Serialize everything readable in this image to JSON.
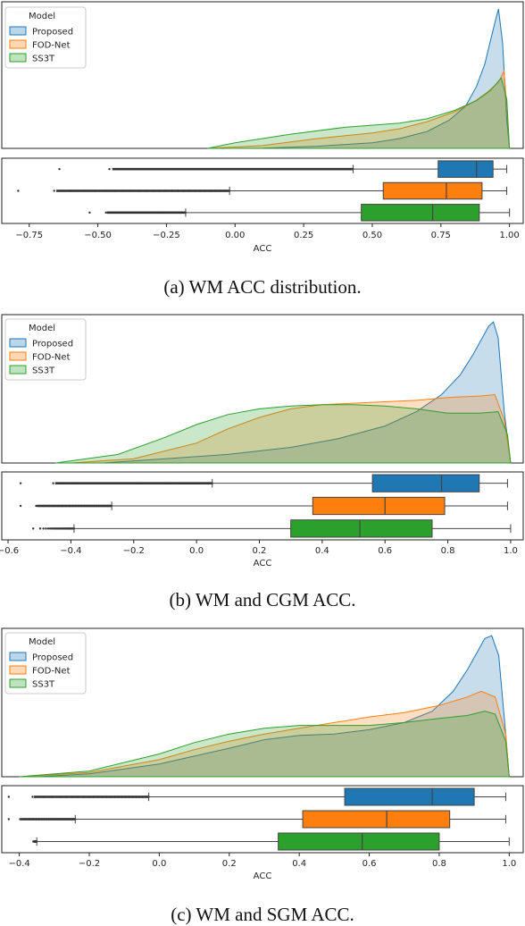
{
  "legend_title": "Model",
  "colors": {
    "Proposed": "#1f77b4",
    "FOD-Net": "#ff7f0e",
    "SS3T": "#2ca02c"
  },
  "chart_data": [
    {
      "type": "area",
      "panel": "a",
      "caption": "(a) WM ACC distribution.",
      "xlabel": "ACC",
      "xlim": [
        -0.85,
        1.05
      ],
      "xticks": [
        -0.75,
        -0.5,
        -0.25,
        0.0,
        0.25,
        0.5,
        0.75,
        1.0
      ],
      "xtick_labels": [
        "−0.75",
        "−0.50",
        "−0.25",
        "0.00",
        "0.25",
        "0.50",
        "0.75",
        "1.00"
      ],
      "legend": [
        "Proposed",
        "FOD-Net",
        "SS3T"
      ],
      "legend_position": "upper left",
      "density_series": [
        {
          "name": "Proposed",
          "x": [
            -0.05,
            0.1,
            0.3,
            0.5,
            0.6,
            0.7,
            0.78,
            0.84,
            0.88,
            0.91,
            0.93,
            0.95,
            0.96,
            0.975,
            0.99,
            1.0
          ],
          "y": [
            0.0,
            0.002,
            0.015,
            0.04,
            0.07,
            0.12,
            0.2,
            0.3,
            0.44,
            0.6,
            0.76,
            0.92,
            0.99,
            0.75,
            0.2,
            0.0
          ]
        },
        {
          "name": "FOD-Net",
          "x": [
            -0.1,
            0.1,
            0.3,
            0.5,
            0.6,
            0.7,
            0.8,
            0.87,
            0.92,
            0.96,
            0.98,
            0.99,
            1.0
          ],
          "y": [
            0.0,
            0.02,
            0.07,
            0.11,
            0.14,
            0.19,
            0.26,
            0.33,
            0.4,
            0.47,
            0.55,
            0.3,
            0.0
          ]
        },
        {
          "name": "SS3T",
          "x": [
            -0.1,
            0.0,
            0.2,
            0.4,
            0.6,
            0.7,
            0.8,
            0.88,
            0.93,
            0.97,
            0.99,
            1.0
          ],
          "y": [
            0.0,
            0.04,
            0.1,
            0.15,
            0.18,
            0.21,
            0.27,
            0.34,
            0.41,
            0.5,
            0.35,
            0.0
          ]
        }
      ],
      "boxplots": [
        {
          "name": "Proposed",
          "q1": 0.74,
          "median": 0.88,
          "q3": 0.94,
          "whisker_low": 0.43,
          "whisker_high": 0.99,
          "outliers_from": -0.64,
          "outliers_to": 0.43
        },
        {
          "name": "FOD-Net",
          "q1": 0.54,
          "median": 0.77,
          "q3": 0.9,
          "whisker_low": -0.02,
          "whisker_high": 0.99,
          "outliers_from": -0.79,
          "outliers_to": -0.02
        },
        {
          "name": "SS3T",
          "q1": 0.46,
          "median": 0.72,
          "q3": 0.89,
          "whisker_low": -0.18,
          "whisker_high": 1.0,
          "outliers_from": -0.53,
          "outliers_to": -0.18
        }
      ]
    },
    {
      "type": "area",
      "panel": "b",
      "caption": "(b) WM and CGM ACC.",
      "xlabel": "ACC",
      "xlim": [
        -0.62,
        1.04
      ],
      "xticks": [
        -0.6,
        -0.4,
        -0.2,
        0.0,
        0.2,
        0.4,
        0.6,
        0.8,
        1.0
      ],
      "xtick_labels": [
        "−0.6",
        "−0.4",
        "−0.2",
        "0.0",
        "0.2",
        "0.4",
        "0.6",
        "0.8",
        "1.0"
      ],
      "legend": [
        "Proposed",
        "FOD-Net",
        "SS3T"
      ],
      "legend_position": "upper left",
      "density_series": [
        {
          "name": "Proposed",
          "x": [
            -0.3,
            -0.1,
            0.1,
            0.3,
            0.45,
            0.6,
            0.7,
            0.78,
            0.84,
            0.88,
            0.91,
            0.93,
            0.945,
            0.96,
            0.98,
            1.0
          ],
          "y": [
            0.0,
            0.03,
            0.06,
            0.11,
            0.17,
            0.26,
            0.36,
            0.48,
            0.62,
            0.76,
            0.88,
            0.96,
            0.99,
            0.88,
            0.35,
            0.0
          ]
        },
        {
          "name": "FOD-Net",
          "x": [
            -0.4,
            -0.2,
            0.0,
            0.1,
            0.2,
            0.3,
            0.4,
            0.5,
            0.6,
            0.7,
            0.8,
            0.9,
            0.95,
            0.98,
            1.0
          ],
          "y": [
            0.0,
            0.03,
            0.14,
            0.24,
            0.32,
            0.38,
            0.41,
            0.42,
            0.43,
            0.44,
            0.46,
            0.47,
            0.48,
            0.3,
            0.0
          ]
        },
        {
          "name": "SS3T",
          "x": [
            -0.45,
            -0.25,
            -0.1,
            0.0,
            0.1,
            0.2,
            0.3,
            0.4,
            0.5,
            0.6,
            0.7,
            0.8,
            0.9,
            0.96,
            0.99,
            1.0
          ],
          "y": [
            0.0,
            0.06,
            0.18,
            0.27,
            0.34,
            0.38,
            0.4,
            0.41,
            0.41,
            0.4,
            0.38,
            0.35,
            0.35,
            0.36,
            0.2,
            0.0
          ]
        }
      ],
      "boxplots": [
        {
          "name": "Proposed",
          "q1": 0.56,
          "median": 0.78,
          "q3": 0.9,
          "whisker_low": 0.05,
          "whisker_high": 0.99,
          "outliers_from": -0.56,
          "outliers_to": 0.05
        },
        {
          "name": "FOD-Net",
          "q1": 0.37,
          "median": 0.6,
          "q3": 0.79,
          "whisker_low": -0.27,
          "whisker_high": 0.99,
          "outliers_from": -0.56,
          "outliers_to": -0.27
        },
        {
          "name": "SS3T",
          "q1": 0.3,
          "median": 0.52,
          "q3": 0.75,
          "whisker_low": -0.39,
          "whisker_high": 1.0,
          "outliers_from": -0.52,
          "outliers_to": -0.39
        }
      ]
    },
    {
      "type": "area",
      "panel": "c",
      "caption": "(c) WM and SGM ACC.",
      "xlabel": "ACC",
      "xlim": [
        -0.45,
        1.04
      ],
      "xticks": [
        -0.4,
        -0.2,
        0.0,
        0.2,
        0.4,
        0.6,
        0.8,
        1.0
      ],
      "xtick_labels": [
        "−0.4",
        "−0.2",
        "0.0",
        "0.2",
        "0.4",
        "0.6",
        "0.8",
        "1.0"
      ],
      "legend": [
        "Proposed",
        "FOD-Net",
        "SS3T"
      ],
      "legend_position": "upper left",
      "density_series": [
        {
          "name": "Proposed",
          "x": [
            -0.35,
            -0.2,
            0.0,
            0.2,
            0.3,
            0.4,
            0.5,
            0.6,
            0.7,
            0.78,
            0.84,
            0.88,
            0.91,
            0.93,
            0.95,
            0.97,
            0.99,
            1.0
          ],
          "y": [
            0.0,
            0.02,
            0.09,
            0.2,
            0.26,
            0.29,
            0.3,
            0.33,
            0.38,
            0.46,
            0.6,
            0.75,
            0.88,
            0.97,
            0.99,
            0.85,
            0.3,
            0.0
          ]
        },
        {
          "name": "FOD-Net",
          "x": [
            -0.4,
            -0.2,
            0.0,
            0.1,
            0.2,
            0.3,
            0.4,
            0.5,
            0.6,
            0.7,
            0.8,
            0.88,
            0.92,
            0.96,
            0.99,
            1.0
          ],
          "y": [
            0.0,
            0.03,
            0.12,
            0.19,
            0.25,
            0.3,
            0.34,
            0.38,
            0.42,
            0.45,
            0.5,
            0.56,
            0.6,
            0.56,
            0.3,
            0.0
          ]
        },
        {
          "name": "SS3T",
          "x": [
            -0.4,
            -0.2,
            0.0,
            0.1,
            0.2,
            0.3,
            0.4,
            0.5,
            0.6,
            0.7,
            0.8,
            0.88,
            0.93,
            0.96,
            0.99,
            1.0
          ],
          "y": [
            0.0,
            0.04,
            0.16,
            0.24,
            0.3,
            0.34,
            0.36,
            0.36,
            0.36,
            0.38,
            0.41,
            0.43,
            0.46,
            0.44,
            0.25,
            0.0
          ]
        }
      ],
      "boxplots": [
        {
          "name": "Proposed",
          "q1": 0.53,
          "median": 0.78,
          "q3": 0.9,
          "whisker_low": -0.03,
          "whisker_high": 0.99,
          "outliers_from": -0.43,
          "outliers_to": -0.03
        },
        {
          "name": "FOD-Net",
          "q1": 0.41,
          "median": 0.65,
          "q3": 0.83,
          "whisker_low": -0.24,
          "whisker_high": 0.99,
          "outliers_from": -0.43,
          "outliers_to": -0.24
        },
        {
          "name": "SS3T",
          "q1": 0.34,
          "median": 0.58,
          "q3": 0.8,
          "whisker_low": -0.35,
          "whisker_high": 1.0,
          "outliers_from": -0.36,
          "outliers_to": -0.35
        }
      ]
    }
  ]
}
